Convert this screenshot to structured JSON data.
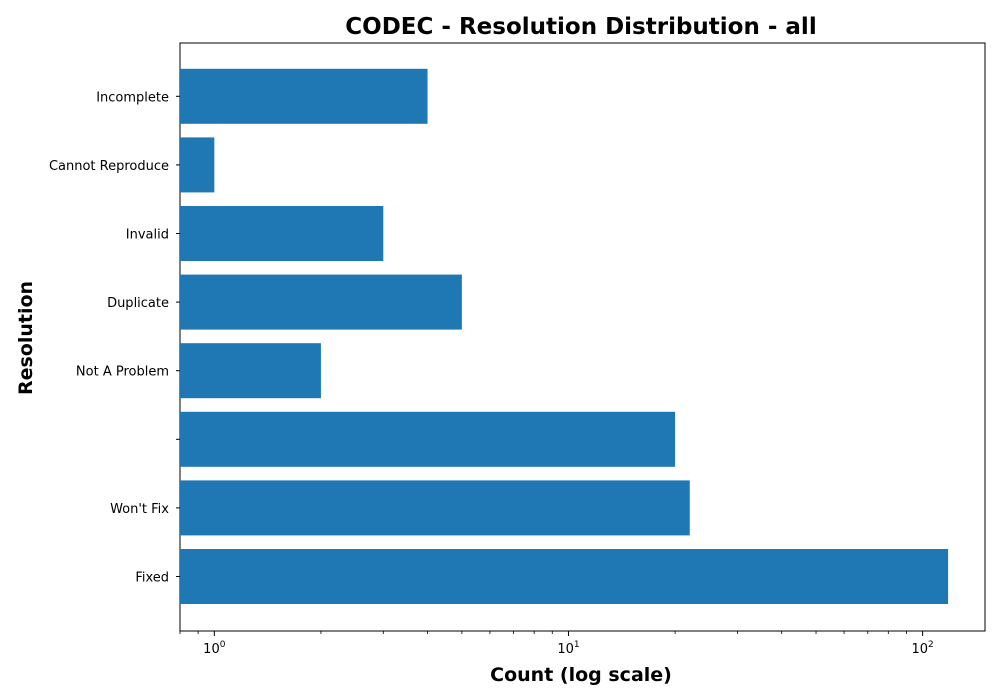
{
  "chart_data": {
    "type": "bar",
    "orientation": "horizontal",
    "title": "CODEC - Resolution Distribution - all",
    "xlabel": "Count (log scale)",
    "ylabel": "Resolution",
    "xscale": "log",
    "xlim": [
      0.8,
      150
    ],
    "grid": false,
    "categories": [
      "Fixed",
      "Won't Fix",
      "",
      "Not A Problem",
      "Duplicate",
      "Invalid",
      "Cannot Reproduce",
      "Incomplete"
    ],
    "values": [
      118,
      22,
      20,
      2,
      5,
      3,
      1,
      4
    ],
    "color": "#1f77b4",
    "xticks": [
      {
        "value": 1,
        "base": "10",
        "exp": "0"
      },
      {
        "value": 10,
        "base": "10",
        "exp": "1"
      },
      {
        "value": 100,
        "base": "10",
        "exp": "2"
      }
    ]
  }
}
